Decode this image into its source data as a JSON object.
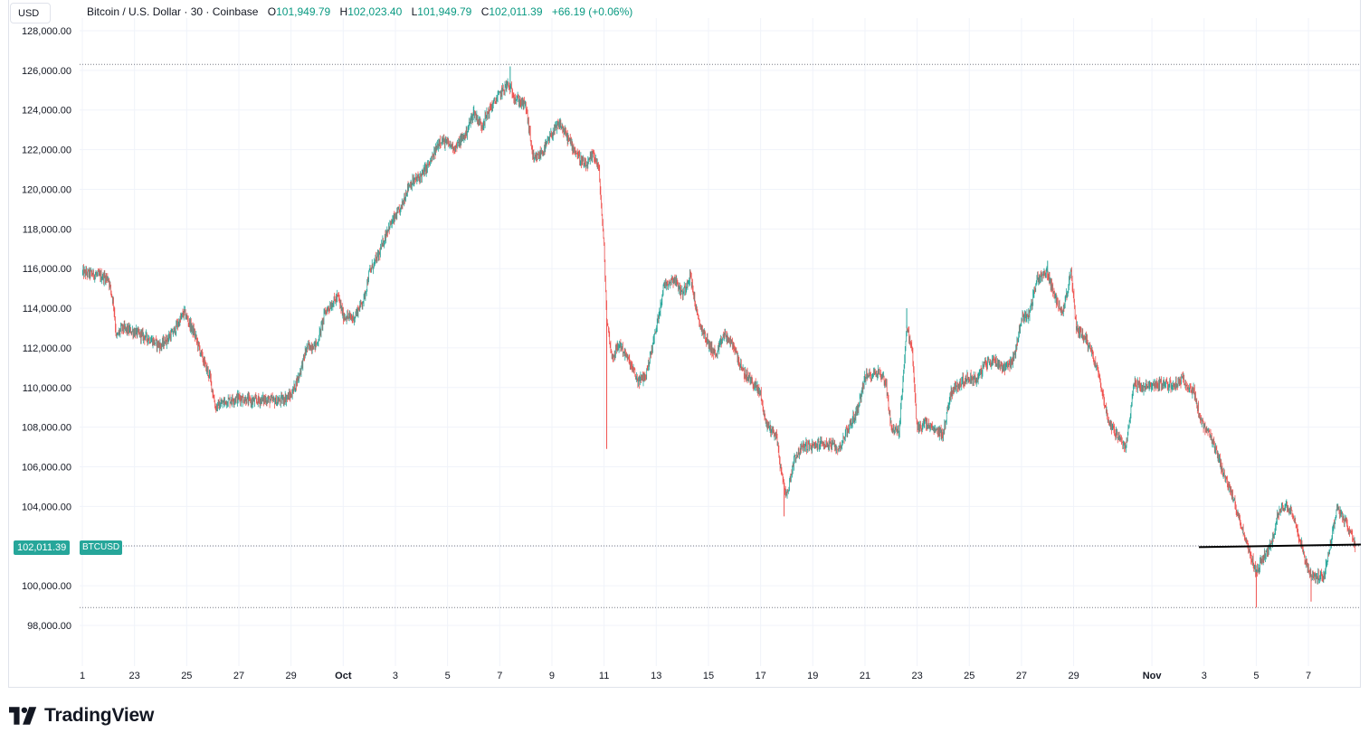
{
  "header": {
    "currency": "USD",
    "symbol_title": "Bitcoin / U.S. Dollar · 30 · Coinbase",
    "open_label": "O",
    "open_value": "101,949.79",
    "high_label": "H",
    "high_value": "102,023.40",
    "low_label": "L",
    "low_value": "101,949.79",
    "close_label": "C",
    "close_value": "102,011.39",
    "change": "+66.19 (+0.06%)"
  },
  "price_badge": {
    "value": "102,011.39",
    "symbol": "BTCUSD"
  },
  "logo": {
    "text": "TradingView"
  },
  "colors": {
    "up": "#26a69a",
    "down": "#ef5350",
    "grid": "#f0f3fa",
    "dotted": "#787b86"
  },
  "chart_data": {
    "type": "candlestick",
    "y_tick_labels": [
      "128,000.00",
      "126,000.00",
      "124,000.00",
      "122,000.00",
      "120,000.00",
      "118,000.00",
      "116,000.00",
      "114,000.00",
      "112,000.00",
      "110,000.00",
      "108,000.00",
      "106,000.00",
      "104,000.00",
      "102,000.00",
      "100,000.00",
      "98,000.00"
    ],
    "y_ticks": [
      128000,
      126000,
      124000,
      122000,
      120000,
      118000,
      116000,
      114000,
      112000,
      110000,
      108000,
      106000,
      104000,
      102000,
      100000,
      98000
    ],
    "ylim": [
      96000,
      128400
    ],
    "x_tick_labels": [
      "1",
      "23",
      "25",
      "27",
      "29",
      "Oct",
      "3",
      "5",
      "7",
      "9",
      "11",
      "13",
      "15",
      "17",
      "19",
      "21",
      "23",
      "25",
      "27",
      "29",
      "Nov",
      "3",
      "5",
      "7"
    ],
    "x_tick_bold": [
      false,
      false,
      false,
      false,
      false,
      true,
      false,
      false,
      false,
      false,
      false,
      false,
      false,
      false,
      false,
      false,
      false,
      false,
      false,
      false,
      true,
      false,
      false,
      false
    ],
    "x_tick_days": [
      0,
      2,
      4,
      6,
      8,
      10,
      12,
      14,
      16,
      18,
      20,
      22,
      24,
      26,
      28,
      30,
      32,
      34,
      36,
      38,
      41,
      43,
      45,
      47
    ],
    "x_days_range": [
      0,
      48.8
    ],
    "price_path": [
      [
        0,
        115800
      ],
      [
        0.5,
        115700
      ],
      [
        1.0,
        115500
      ],
      [
        1.2,
        114200
      ],
      [
        1.3,
        112500
      ],
      [
        1.5,
        113000
      ],
      [
        2.0,
        112800
      ],
      [
        2.5,
        112500
      ],
      [
        3.0,
        112100
      ],
      [
        3.5,
        112800
      ],
      [
        3.9,
        113800
      ],
      [
        4.3,
        112700
      ],
      [
        4.6,
        111500
      ],
      [
        4.9,
        110500
      ],
      [
        5.1,
        109000
      ],
      [
        5.5,
        109300
      ],
      [
        6.0,
        109500
      ],
      [
        6.5,
        109300
      ],
      [
        7.0,
        109400
      ],
      [
        7.5,
        109300
      ],
      [
        8.0,
        109600
      ],
      [
        8.3,
        110600
      ],
      [
        8.6,
        112000
      ],
      [
        9.0,
        112200
      ],
      [
        9.3,
        113800
      ],
      [
        9.8,
        114600
      ],
      [
        10.0,
        113600
      ],
      [
        10.4,
        113500
      ],
      [
        10.8,
        114500
      ],
      [
        11.0,
        115800
      ],
      [
        11.4,
        116800
      ],
      [
        11.7,
        118000
      ],
      [
        12.2,
        119000
      ],
      [
        12.5,
        120200
      ],
      [
        13.0,
        120700
      ],
      [
        13.4,
        121500
      ],
      [
        13.7,
        122500
      ],
      [
        14.0,
        122300
      ],
      [
        14.3,
        122100
      ],
      [
        14.7,
        122800
      ],
      [
        15.0,
        123900
      ],
      [
        15.3,
        123200
      ],
      [
        15.6,
        124000
      ],
      [
        16.0,
        124800
      ],
      [
        16.3,
        125300
      ],
      [
        16.6,
        124600
      ],
      [
        17.0,
        124200
      ],
      [
        17.3,
        121400
      ],
      [
        17.7,
        122000
      ],
      [
        18.0,
        122800
      ],
      [
        18.3,
        123300
      ],
      [
        18.6,
        122600
      ],
      [
        19.0,
        121700
      ],
      [
        19.3,
        121100
      ],
      [
        19.6,
        121800
      ],
      [
        19.8,
        121000
      ],
      [
        20.0,
        117000
      ],
      [
        20.1,
        113500
      ],
      [
        20.3,
        111500
      ],
      [
        20.6,
        112200
      ],
      [
        21.0,
        111200
      ],
      [
        21.3,
        110300
      ],
      [
        21.6,
        110600
      ],
      [
        22.0,
        113000
      ],
      [
        22.3,
        115200
      ],
      [
        22.7,
        115500
      ],
      [
        23.0,
        114700
      ],
      [
        23.3,
        115700
      ],
      [
        23.6,
        113400
      ],
      [
        24.0,
        112200
      ],
      [
        24.3,
        111600
      ],
      [
        24.6,
        112700
      ],
      [
        25.0,
        112000
      ],
      [
        25.3,
        110800
      ],
      [
        25.6,
        110400
      ],
      [
        26.0,
        109700
      ],
      [
        26.2,
        108200
      ],
      [
        26.6,
        107600
      ],
      [
        26.8,
        105600
      ],
      [
        27.0,
        104500
      ],
      [
        27.3,
        106500
      ],
      [
        27.7,
        107100
      ],
      [
        28.0,
        107000
      ],
      [
        28.3,
        107200
      ],
      [
        28.7,
        107100
      ],
      [
        29.0,
        106900
      ],
      [
        29.3,
        107800
      ],
      [
        29.7,
        108800
      ],
      [
        30.0,
        110500
      ],
      [
        30.5,
        110800
      ],
      [
        30.8,
        110300
      ],
      [
        31.0,
        108000
      ],
      [
        31.3,
        107700
      ],
      [
        31.6,
        113000
      ],
      [
        31.8,
        112000
      ],
      [
        32.0,
        107900
      ],
      [
        32.3,
        108200
      ],
      [
        32.7,
        107800
      ],
      [
        33.0,
        107700
      ],
      [
        33.3,
        109800
      ],
      [
        33.7,
        110300
      ],
      [
        34.0,
        110500
      ],
      [
        34.3,
        110400
      ],
      [
        34.6,
        111200
      ],
      [
        35.0,
        111400
      ],
      [
        35.3,
        111000
      ],
      [
        35.7,
        111400
      ],
      [
        36.0,
        113500
      ],
      [
        36.3,
        113700
      ],
      [
        36.6,
        115500
      ],
      [
        37.0,
        115800
      ],
      [
        37.3,
        114400
      ],
      [
        37.6,
        113900
      ],
      [
        37.9,
        115800
      ],
      [
        38.1,
        113000
      ],
      [
        38.4,
        112600
      ],
      [
        38.7,
        111800
      ],
      [
        39.0,
        110500
      ],
      [
        39.3,
        108400
      ],
      [
        39.7,
        107500
      ],
      [
        40.0,
        106900
      ],
      [
        40.3,
        110200
      ],
      [
        40.7,
        110000
      ],
      [
        41.0,
        110100
      ],
      [
        41.4,
        110200
      ],
      [
        41.8,
        110100
      ],
      [
        42.2,
        110400
      ],
      [
        42.6,
        109800
      ],
      [
        42.9,
        108200
      ],
      [
        43.2,
        107600
      ],
      [
        43.5,
        106600
      ],
      [
        43.8,
        105500
      ],
      [
        44.1,
        104400
      ],
      [
        44.4,
        103200
      ],
      [
        44.7,
        101800
      ],
      [
        45.0,
        100700
      ],
      [
        45.3,
        101500
      ],
      [
        45.6,
        102100
      ],
      [
        45.8,
        103500
      ],
      [
        46.1,
        104100
      ],
      [
        46.4,
        103700
      ],
      [
        46.7,
        102200
      ],
      [
        47.0,
        100700
      ],
      [
        47.3,
        100400
      ],
      [
        47.6,
        100600
      ],
      [
        47.9,
        102500
      ],
      [
        48.1,
        104000
      ],
      [
        48.4,
        103300
      ],
      [
        48.7,
        102400
      ],
      [
        48.8,
        102011
      ]
    ],
    "low_spikes": [
      [
        20.1,
        106900
      ],
      [
        26.9,
        103500
      ],
      [
        45.0,
        98900
      ],
      [
        47.1,
        99200
      ]
    ],
    "high_spikes": [
      [
        16.4,
        126200
      ],
      [
        31.6,
        114000
      ],
      [
        37.0,
        116400
      ]
    ],
    "dotted_levels": [
      126300,
      102011,
      98900
    ],
    "trendline": [
      [
        42.8,
        101950
      ],
      [
        48.8,
        102080
      ]
    ],
    "current_price": 102011.39
  }
}
